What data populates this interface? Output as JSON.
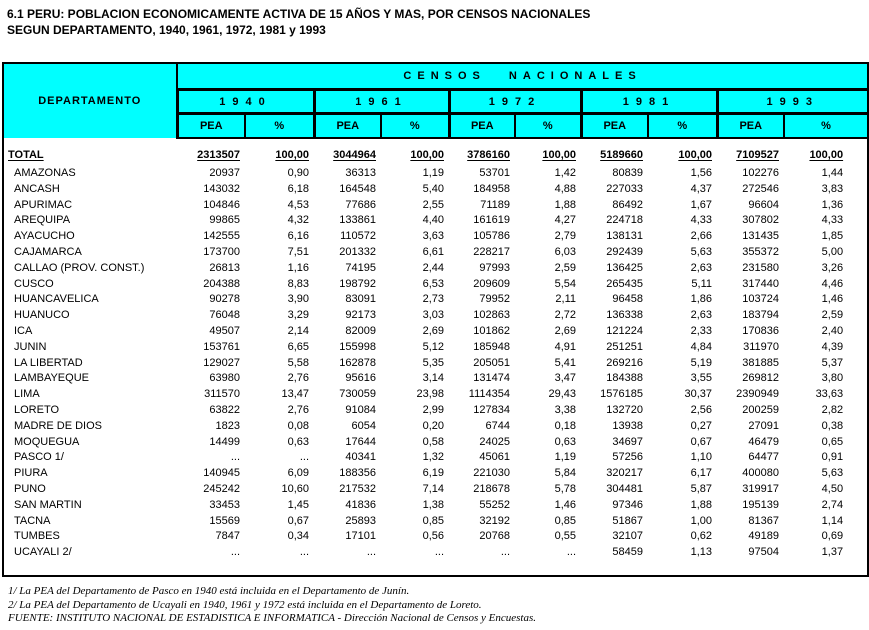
{
  "title": {
    "line1": "6.1 PERU: POBLACION ECONOMICAMENTE ACTIVA DE 15 AÑOS Y MAS, POR CENSOS NACIONALES",
    "line2": "SEGUN DEPARTAMENTO, 1940, 1961, 1972, 1981 y 1993"
  },
  "colors": {
    "header_bg": "#00ffff",
    "border": "#000000",
    "text": "#000000",
    "page_bg": "#ffffff"
  },
  "table": {
    "corner_label": "DEPARTAMENTO",
    "group_header": "CENSOS NACIONALES",
    "years": [
      "1940",
      "1961",
      "1972",
      "1981",
      "1993"
    ],
    "sub_headers": [
      "PEA",
      "%"
    ],
    "total_row": {
      "label": "TOTAL",
      "values": [
        "2313507",
        "100,00",
        "3044964",
        "100,00",
        "3786160",
        "100,00",
        "5189660",
        "100,00",
        "7109527",
        "100,00"
      ]
    },
    "rows": [
      {
        "label": "AMAZONAS",
        "values": [
          "20937",
          "0,90",
          "36313",
          "1,19",
          "53701",
          "1,42",
          "80839",
          "1,56",
          "102276",
          "1,44"
        ]
      },
      {
        "label": "ANCASH",
        "values": [
          "143032",
          "6,18",
          "164548",
          "5,40",
          "184958",
          "4,88",
          "227033",
          "4,37",
          "272546",
          "3,83"
        ]
      },
      {
        "label": "APURIMAC",
        "values": [
          "104846",
          "4,53",
          "77686",
          "2,55",
          "71189",
          "1,88",
          "86492",
          "1,67",
          "96604",
          "1,36"
        ]
      },
      {
        "label": "AREQUIPA",
        "values": [
          "99865",
          "4,32",
          "133861",
          "4,40",
          "161619",
          "4,27",
          "224718",
          "4,33",
          "307802",
          "4,33"
        ]
      },
      {
        "label": "AYACUCHO",
        "values": [
          "142555",
          "6,16",
          "110572",
          "3,63",
          "105786",
          "2,79",
          "138131",
          "2,66",
          "131435",
          "1,85"
        ]
      },
      {
        "label": "CAJAMARCA",
        "values": [
          "173700",
          "7,51",
          "201332",
          "6,61",
          "228217",
          "6,03",
          "292439",
          "5,63",
          "355372",
          "5,00"
        ]
      },
      {
        "label": "CALLAO (PROV. CONST.)",
        "values": [
          "26813",
          "1,16",
          "74195",
          "2,44",
          "97993",
          "2,59",
          "136425",
          "2,63",
          "231580",
          "3,26"
        ]
      },
      {
        "label": "CUSCO",
        "values": [
          "204388",
          "8,83",
          "198792",
          "6,53",
          "209609",
          "5,54",
          "265435",
          "5,11",
          "317440",
          "4,46"
        ]
      },
      {
        "label": "HUANCAVELICA",
        "values": [
          "90278",
          "3,90",
          "83091",
          "2,73",
          "79952",
          "2,11",
          "96458",
          "1,86",
          "103724",
          "1,46"
        ]
      },
      {
        "label": "HUANUCO",
        "values": [
          "76048",
          "3,29",
          "92173",
          "3,03",
          "102863",
          "2,72",
          "136338",
          "2,63",
          "183794",
          "2,59"
        ]
      },
      {
        "label": "ICA",
        "values": [
          "49507",
          "2,14",
          "82009",
          "2,69",
          "101862",
          "2,69",
          "121224",
          "2,33",
          "170836",
          "2,40"
        ]
      },
      {
        "label": "JUNIN",
        "values": [
          "153761",
          "6,65",
          "155998",
          "5,12",
          "185948",
          "4,91",
          "251251",
          "4,84",
          "311970",
          "4,39"
        ]
      },
      {
        "label": "LA LIBERTAD",
        "values": [
          "129027",
          "5,58",
          "162878",
          "5,35",
          "205051",
          "5,41",
          "269216",
          "5,19",
          "381885",
          "5,37"
        ]
      },
      {
        "label": "LAMBAYEQUE",
        "values": [
          "63980",
          "2,76",
          "95616",
          "3,14",
          "131474",
          "3,47",
          "184388",
          "3,55",
          "269812",
          "3,80"
        ]
      },
      {
        "label": "LIMA",
        "values": [
          "311570",
          "13,47",
          "730059",
          "23,98",
          "1114354",
          "29,43",
          "1576185",
          "30,37",
          "2390949",
          "33,63"
        ]
      },
      {
        "label": "LORETO",
        "values": [
          "63822",
          "2,76",
          "91084",
          "2,99",
          "127834",
          "3,38",
          "132720",
          "2,56",
          "200259",
          "2,82"
        ]
      },
      {
        "label": "MADRE DE DIOS",
        "values": [
          "1823",
          "0,08",
          "6054",
          "0,20",
          "6744",
          "0,18",
          "13938",
          "0,27",
          "27091",
          "0,38"
        ]
      },
      {
        "label": "MOQUEGUA",
        "values": [
          "14499",
          "0,63",
          "17644",
          "0,58",
          "24025",
          "0,63",
          "34697",
          "0,67",
          "46479",
          "0,65"
        ]
      },
      {
        "label": "PASCO 1/",
        "values": [
          "...",
          "...",
          "40341",
          "1,32",
          "45061",
          "1,19",
          "57256",
          "1,10",
          "64477",
          "0,91"
        ]
      },
      {
        "label": "PIURA",
        "values": [
          "140945",
          "6,09",
          "188356",
          "6,19",
          "221030",
          "5,84",
          "320217",
          "6,17",
          "400080",
          "5,63"
        ]
      },
      {
        "label": "PUNO",
        "values": [
          "245242",
          "10,60",
          "217532",
          "7,14",
          "218678",
          "5,78",
          "304481",
          "5,87",
          "319917",
          "4,50"
        ]
      },
      {
        "label": "SAN MARTIN",
        "values": [
          "33453",
          "1,45",
          "41836",
          "1,38",
          "55252",
          "1,46",
          "97346",
          "1,88",
          "195139",
          "2,74"
        ]
      },
      {
        "label": "TACNA",
        "values": [
          "15569",
          "0,67",
          "25893",
          "0,85",
          "32192",
          "0,85",
          "51867",
          "1,00",
          "81367",
          "1,14"
        ]
      },
      {
        "label": "TUMBES",
        "values": [
          "7847",
          "0,34",
          "17101",
          "0,56",
          "20768",
          "0,55",
          "32107",
          "0,62",
          "49189",
          "0,69"
        ]
      },
      {
        "label": "UCAYALI 2/",
        "values": [
          "...",
          "...",
          "...",
          "...",
          "...",
          "...",
          "58459",
          "1,13",
          "97504",
          "1,37"
        ]
      }
    ]
  },
  "footnotes": [
    "1/ La PEA del Departamento de Pasco en 1940 está incluida en el Departamento de Junín.",
    "2/ La PEA del Departamento de Ucayali en 1940, 1961 y 1972 está incluida en el Departamento de Loreto.",
    "FUENTE: INSTITUTO NACIONAL DE ESTADISTICA E INFORMATICA - Dirección Nacional de Censos y Encuestas."
  ]
}
